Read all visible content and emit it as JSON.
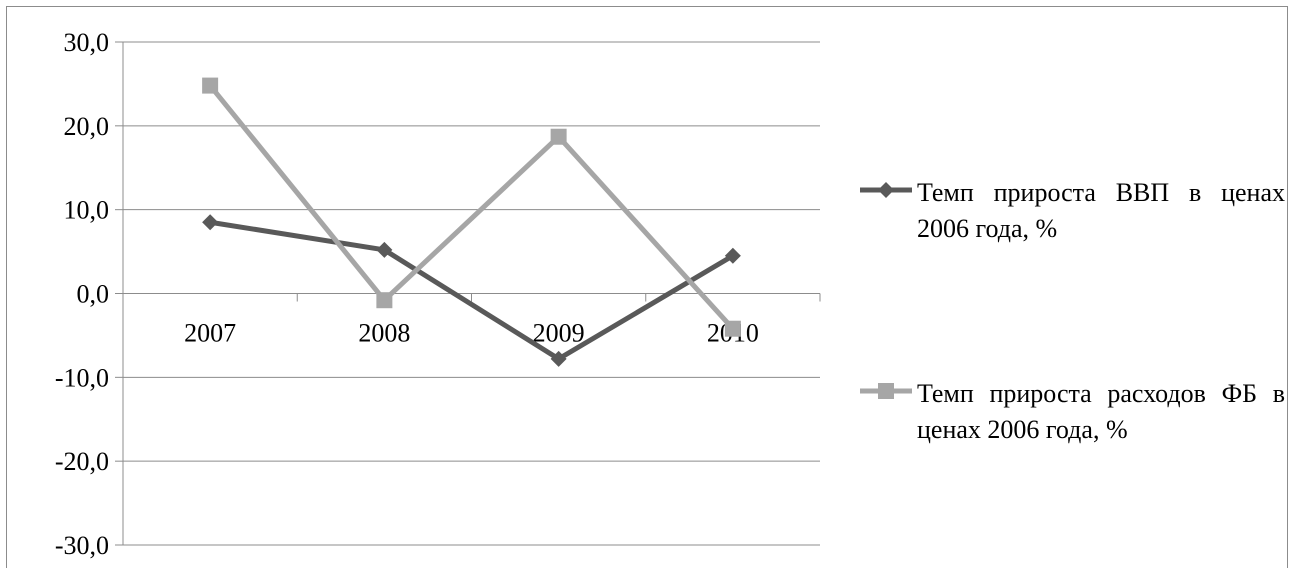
{
  "chart_data": {
    "type": "line",
    "categories": [
      "2007",
      "2008",
      "2009",
      "2010"
    ],
    "series": [
      {
        "name": "Темп прироста ВВП в ценах 2006 года, %",
        "values": [
          8.5,
          5.2,
          -7.8,
          4.5
        ],
        "color": "#595959",
        "marker": "diamond"
      },
      {
        "name": "Темп прироста расходов ФБ в ценах 2006 года, %",
        "values": [
          24.8,
          -0.8,
          18.7,
          -4.2
        ],
        "color": "#a6a6a6",
        "marker": "square"
      }
    ],
    "y_ticks": [
      "30,0",
      "20,0",
      "10,0",
      "0,0",
      "-10,0",
      "-20,0",
      "-30,0"
    ],
    "ylim": [
      -30,
      30
    ],
    "y_tick_step": 10,
    "grid": true,
    "legend_position": "right",
    "title": "",
    "xlabel": "",
    "ylabel": ""
  }
}
